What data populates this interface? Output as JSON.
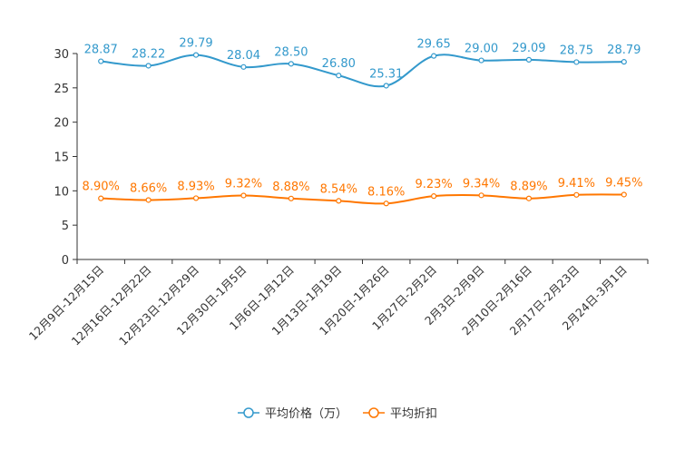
{
  "chart_data": {
    "type": "line",
    "title": "",
    "xlabel": "",
    "ylabel": "",
    "ylim": [
      0,
      30
    ],
    "yticks": [
      0,
      5,
      10,
      15,
      20,
      25,
      30
    ],
    "grid": false,
    "legend_position": "bottom-center",
    "categories": [
      "12月9日-12月15日",
      "12月16日-12月22日",
      "12月23日-12月29日",
      "12月30日-1月5日",
      "1月6日-1月12日",
      "1月13日-1月19日",
      "1月20日-1月26日",
      "1月27日-2月2日",
      "2月3日-2月9日",
      "2月10日-2月16日",
      "2月17日-2月23日",
      "2月24日-3月1日"
    ],
    "series": [
      {
        "name": "平均价格（万）",
        "color": "#3399cc",
        "values": [
          28.87,
          28.22,
          29.79,
          28.04,
          28.5,
          26.8,
          25.31,
          29.65,
          29.0,
          29.09,
          28.75,
          28.79
        ],
        "labels": [
          "28.87",
          "28.22",
          "29.79",
          "28.04",
          "28.50",
          "26.80",
          "25.31",
          "29.65",
          "29.00",
          "29.09",
          "28.75",
          "28.79"
        ]
      },
      {
        "name": "平均折扣",
        "color": "#ff7700",
        "values": [
          8.9,
          8.66,
          8.93,
          9.32,
          8.88,
          8.54,
          8.16,
          9.23,
          9.34,
          8.89,
          9.41,
          9.45
        ],
        "labels": [
          "8.90%",
          "8.66%",
          "8.93%",
          "9.32%",
          "8.88%",
          "8.54%",
          "8.16%",
          "9.23%",
          "9.34%",
          "8.89%",
          "9.41%",
          "9.45%"
        ]
      }
    ]
  }
}
